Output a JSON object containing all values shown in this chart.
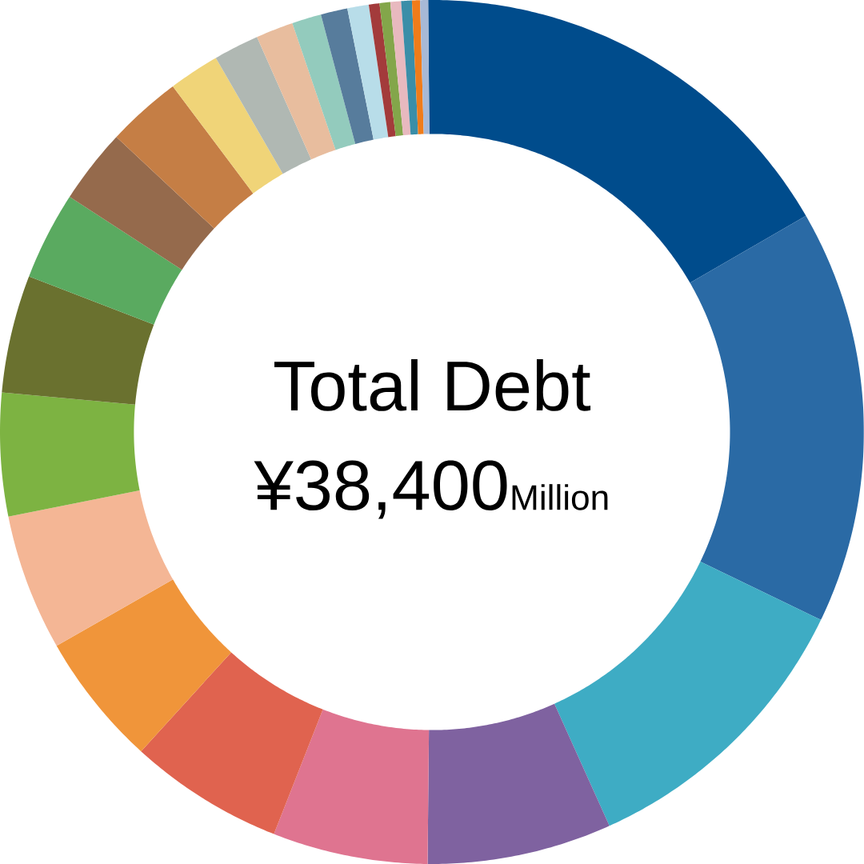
{
  "chart_data": {
    "type": "donut",
    "title": "Total Debt",
    "subtitle": "¥38,400",
    "annotations": [
      "Million"
    ],
    "categories": [
      null,
      null,
      null,
      null,
      null,
      null,
      null,
      null,
      null,
      null,
      null,
      null,
      null,
      null,
      null,
      null,
      null,
      null,
      null,
      null,
      null,
      null,
      null,
      null,
      null
    ],
    "values": [
      16.8,
      15.5,
      11.1,
      6.9,
      5.8,
      5.8,
      5.0,
      5.1,
      4.6,
      4.4,
      3.3,
      2.8,
      2.8,
      1.9,
      1.7,
      1.4,
      1.1,
      1.0,
      0.8,
      0.4,
      0.4,
      0.4,
      0.4,
      0.3,
      0.3
    ],
    "colors": [
      "#004c8c",
      "#2a6aa5",
      "#3eacc4",
      "#7f62a0",
      "#df7490",
      "#e0634f",
      "#f0953a",
      "#f4b695",
      "#7db342",
      "#6a712f",
      "#5aaa60",
      "#956a4c",
      "#c57e45",
      "#f0d478",
      "#b0b8b3",
      "#e8bd9e",
      "#93cbbd",
      "#577c9c",
      "#b8dde9",
      "#a33b3b",
      "#83a64a",
      "#e8b9bf",
      "#3a8ea8",
      "#f07c1a",
      "#a7b9d6"
    ]
  }
}
